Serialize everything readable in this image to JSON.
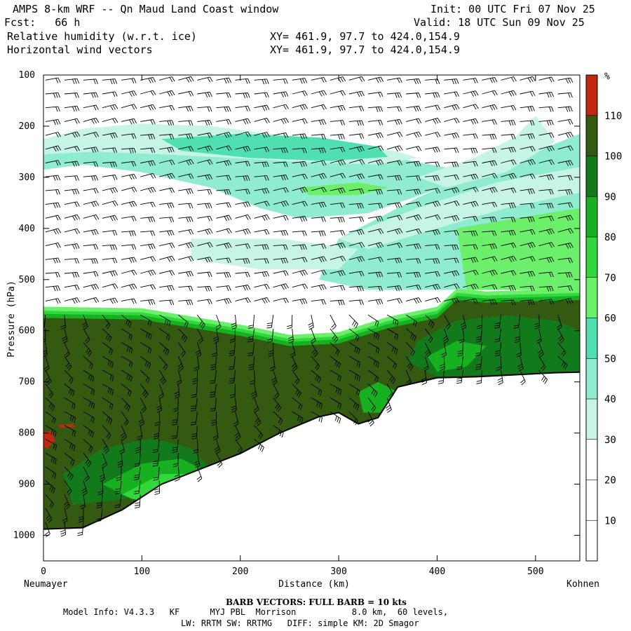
{
  "header": {
    "line1_left": "AMPS 8-km WRF -- Qn Maud Land Coast window",
    "line2_left": "Fcst:   66 h",
    "line3_left": "Relative humidity (w.r.t. ice)",
    "line4_left": "Horizontal wind vectors",
    "line1_right": "Init: 00 UTC Fri 07 Nov 25",
    "line2_right": "Valid: 18 UTC Sun 09 Nov 25",
    "xy1": "XY= 461.9, 97.7 to 424.0,154.9",
    "xy2": "XY= 461.9, 97.7 to 424.0,154.9"
  },
  "footer": {
    "barb_note": "BARB VECTORS:  FULL BARB = 10 kts",
    "model_line1": "Model Info: V4.3.3   KF      MYJ PBL  Morrison           8.0 km,  60 levels,",
    "model_line2": "LW: RRTM SW: RRTMG   DIFF: simple KM: 2D Smagor"
  },
  "colors": {
    "rh_30_40": "#c6f5e6",
    "rh_40_50": "#8fecd1",
    "rh_50_60": "#4fdfb2",
    "rh_60_70": "#6cf06c",
    "rh_70_80": "#30d83c",
    "rh_80_90": "#16b020",
    "rh_90_100": "#137a1c",
    "rh_100_110": "#335a10",
    "rh_110_plus": "#c02810",
    "terrain": "#ffffff"
  },
  "chart_data": {
    "type": "heatmap",
    "title": "Relative humidity (w.r.t. ice)",
    "xlabel": "Distance (km)",
    "ylabel": "Pressure (hPa)",
    "x_ticks": [
      0,
      100,
      200,
      300,
      400,
      500
    ],
    "y_ticks": [
      100,
      200,
      300,
      400,
      500,
      600,
      700,
      800,
      900,
      1000
    ],
    "xlim": [
      0,
      545
    ],
    "ylim": [
      1050,
      100
    ],
    "endpoints": {
      "left": "Neumayer",
      "right": "Kohnen"
    },
    "colorbar": {
      "unit": "%",
      "levels": [
        10,
        20,
        30,
        40,
        50,
        60,
        70,
        80,
        90,
        100,
        110
      ],
      "colors": [
        "#ffffff",
        "#ffffff",
        "#ffffff",
        "#c6f5e6",
        "#8fecd1",
        "#4fdfb2",
        "#6cf06c",
        "#30d83c",
        "#16b020",
        "#137a1c",
        "#335a10",
        "#c02810"
      ]
    },
    "terrain_pressure": {
      "x": [
        0,
        40,
        80,
        120,
        160,
        200,
        240,
        280,
        300,
        320,
        340,
        360,
        400,
        440,
        480,
        520,
        545
      ],
      "p": [
        988,
        985,
        950,
        900,
        870,
        840,
        800,
        768,
        760,
        782,
        770,
        710,
        692,
        690,
        686,
        682,
        681
      ]
    },
    "moist_layer_top_pressure": {
      "x": [
        0,
        100,
        200,
        250,
        300,
        350,
        400,
        420,
        450,
        545
      ],
      "p": [
        575,
        578,
        610,
        630,
        625,
        595,
        575,
        540,
        545,
        540
      ]
    },
    "wind_barbs": "Horizontal wind vectors"
  }
}
